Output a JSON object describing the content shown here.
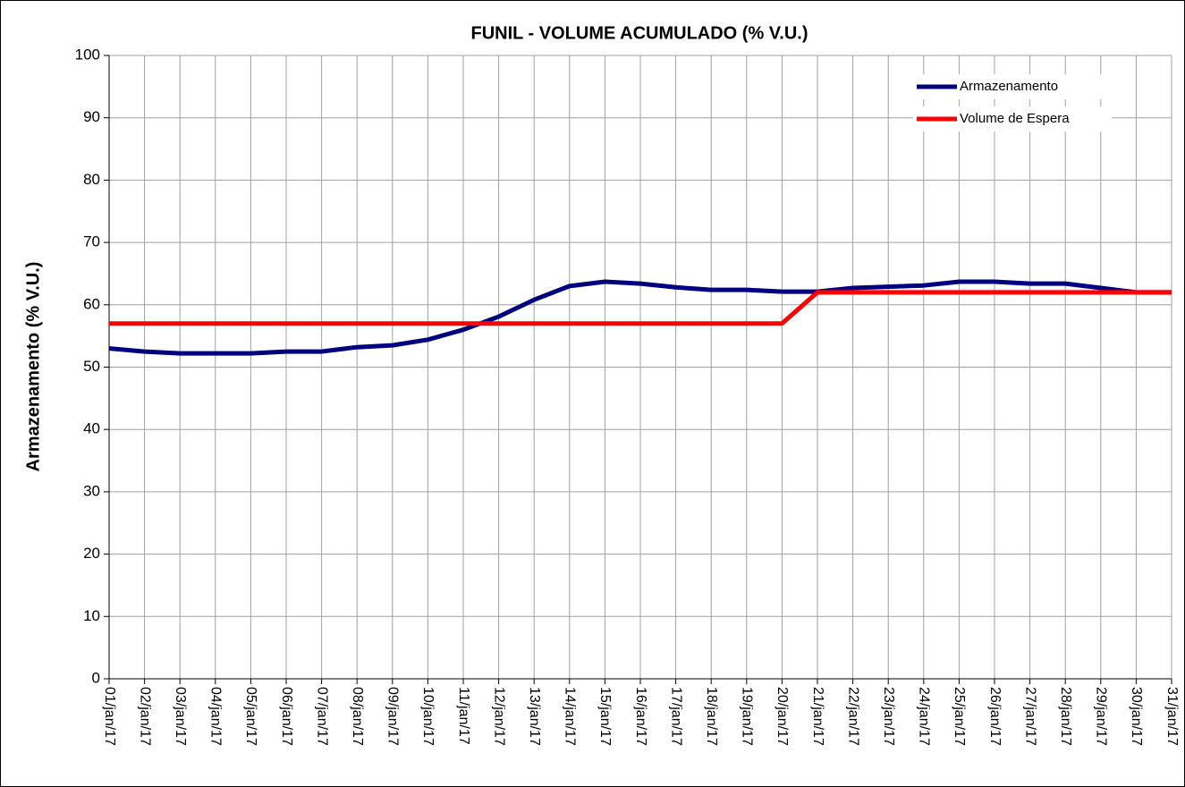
{
  "chart_data": {
    "type": "line",
    "title": "FUNIL - VOLUME ACUMULADO (% V.U.)",
    "y_label": "Armazenamento (% V.U.)",
    "categories": [
      "01/jan/17",
      "02/jan/17",
      "03/jan/17",
      "04/jan/17",
      "05/jan/17",
      "06/jan/17",
      "07/jan/17",
      "08/jan/17",
      "09/jan/17",
      "10/jan/17",
      "11/jan/17",
      "12/jan/17",
      "13/jan/17",
      "14/jan/17",
      "15/jan/17",
      "16/jan/17",
      "17/jan/17",
      "18/jan/17",
      "19/jan/17",
      "20/jan/17",
      "21/jan/17",
      "22/jan/17",
      "23/jan/17",
      "24/jan/17",
      "25/jan/17",
      "26/jan/17",
      "27/jan/17",
      "28/jan/17",
      "29/jan/17",
      "30/jan/17",
      "31/jan/17"
    ],
    "series": [
      {
        "name": "Armazenamento",
        "color": "#000080",
        "values": [
          53.0,
          52.5,
          52.2,
          52.2,
          52.2,
          52.5,
          52.5,
          53.2,
          53.5,
          54.4,
          56.0,
          58.1,
          60.8,
          63.0,
          63.7,
          63.4,
          62.8,
          62.4,
          62.4,
          62.1,
          62.1,
          62.7,
          62.9,
          63.1,
          63.7,
          63.7,
          63.4,
          63.4,
          62.7,
          62.0,
          62.0
        ]
      },
      {
        "name": "Volume de Espera",
        "color": "#ff0000",
        "values": [
          57,
          57,
          57,
          57,
          57,
          57,
          57,
          57,
          57,
          57,
          57,
          57,
          57,
          57,
          57,
          57,
          57,
          57,
          57,
          57,
          62,
          62,
          62,
          62,
          62,
          62,
          62,
          62,
          62,
          62,
          62
        ]
      }
    ],
    "ylim": [
      0,
      100
    ],
    "yticks": [
      0,
      10,
      20,
      30,
      40,
      50,
      60,
      70,
      80,
      90,
      100
    ],
    "grid": true,
    "legend": "upper right"
  }
}
